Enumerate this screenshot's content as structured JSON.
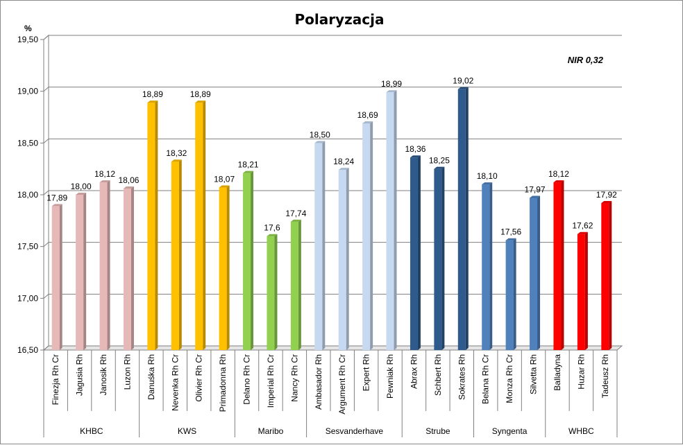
{
  "chart_data": {
    "type": "bar",
    "title": "Polaryzacja",
    "ylabel": "%",
    "annotation": "NIR 0,32",
    "ylim": [
      16.5,
      19.5
    ],
    "yticks": [
      "16,50",
      "17,00",
      "17,50",
      "18,00",
      "18,50",
      "19,00",
      "19,50"
    ],
    "grid": true,
    "categories": [
      "Finezja Rh Cr",
      "Jagusia Rh",
      "Janosik Rh",
      "Luzon Rh",
      "Danuśka Rh",
      "Nevenka Rh Cr",
      "Olivier Rh Cr",
      "Primadonna Rh",
      "Delano Rh Cr",
      "Imperial Rh Cr",
      "Nancy Rh Cr",
      "Ambasador Rh",
      "Argument Rh Cr",
      "Expert Rh",
      "Pewniak Rh",
      "Abrax Rh",
      "Schbert Rh",
      "Sokrates Rh",
      "Belana Rh Cr",
      "Monza Rh Cr",
      "Silvetta Rh",
      "Balladyna",
      "Huzar Rh",
      "Tadeusz Rh"
    ],
    "values": [
      17.89,
      18.0,
      18.12,
      18.06,
      18.89,
      18.32,
      18.89,
      18.07,
      18.21,
      17.6,
      17.74,
      18.5,
      18.24,
      18.69,
      18.99,
      18.36,
      18.25,
      19.02,
      18.1,
      17.56,
      17.97,
      18.12,
      17.62,
      17.92
    ],
    "value_labels": [
      "17,89",
      "18,00",
      "18,12",
      "18,06",
      "18,89",
      "18,32",
      "18,89",
      "18,07",
      "18,21",
      "17,6",
      "17,74",
      "18,50",
      "18,24",
      "18,69",
      "18,99",
      "18,36",
      "18,25",
      "19,02",
      "18,10",
      "17,56",
      "17,97",
      "18,12",
      "17,62",
      "17,92"
    ],
    "groups": [
      {
        "name": "KHBC",
        "count": 4,
        "color": "#e6b9b8"
      },
      {
        "name": "KWS",
        "count": 4,
        "color": "#ffc000"
      },
      {
        "name": "Maribo",
        "count": 3,
        "color": "#92d050"
      },
      {
        "name": "Sesvanderhave",
        "count": 4,
        "color": "#c6d9f1"
      },
      {
        "name": "Strube",
        "count": 3,
        "color": "#2e5a8c"
      },
      {
        "name": "Syngenta",
        "count": 3,
        "color": "#4f81bd"
      },
      {
        "name": "WHBC",
        "count": 3,
        "color": "#ff0000"
      }
    ]
  }
}
